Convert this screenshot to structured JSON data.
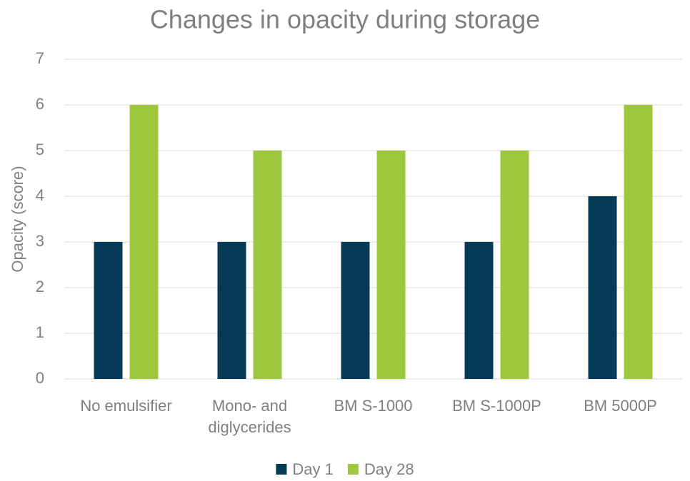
{
  "chart_data": {
    "type": "bar",
    "title": "Changes in opacity during storage",
    "y_label": "Opacity (score)",
    "categories": [
      "No emulsifier",
      "Mono- and diglycerides",
      "BM S-1000",
      "BM S-1000P",
      "BM 5000P"
    ],
    "series": [
      {
        "name": "Day 1",
        "color": "#053a57",
        "values": [
          3,
          3,
          3,
          3,
          4
        ]
      },
      {
        "name": "Day 28",
        "color": "#9dc83e",
        "values": [
          6,
          5,
          5,
          5,
          6
        ]
      }
    ],
    "ylim": [
      0,
      7
    ],
    "yticks": [
      0,
      1,
      2,
      3,
      4,
      5,
      6,
      7
    ],
    "grid": true,
    "legend": "bottom"
  }
}
